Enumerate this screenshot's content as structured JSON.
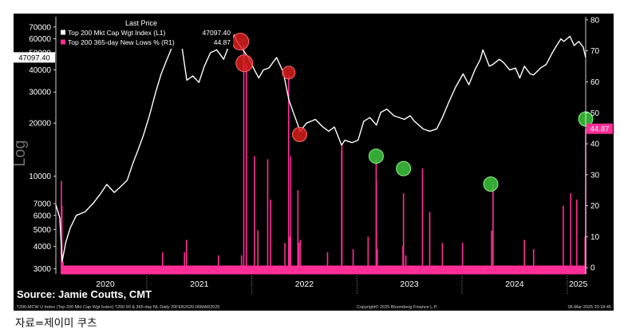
{
  "caption": "자료=제이미 쿠츠",
  "chart_data": {
    "type": "line",
    "legend": {
      "title": "Last Price",
      "placement": "top-left",
      "entries": [
        {
          "label": "Top 200 Mkt Cap Wgt Index  (L1)",
          "value": "47097.40",
          "color": "#ffffff"
        },
        {
          "label": "Top 200 365-day New Lows %  (R1)",
          "value": "44.87",
          "color": "#ff2d95"
        }
      ]
    },
    "left_axis": {
      "scale": "log",
      "label": "Log",
      "ticks": [
        3000,
        4000,
        5000,
        6000,
        7000,
        10000,
        20000,
        30000,
        40000,
        50000,
        60000,
        70000
      ],
      "tick_labels": [
        "3000",
        "4000",
        "5000",
        "6000",
        "7000",
        "10000",
        "20000",
        "30000",
        "40000",
        "50000",
        "60000",
        "70000"
      ],
      "last_value_label": "47097.40",
      "ylim": [
        2800,
        80000
      ]
    },
    "right_axis": {
      "scale": "linear",
      "ticks": [
        0,
        10,
        20,
        30,
        40,
        50,
        60,
        70,
        80
      ],
      "last_value_label": "44.87",
      "ylim": [
        -2,
        81
      ]
    },
    "x_axis": {
      "years": [
        "2020",
        "2021",
        "2022",
        "2023",
        "2024",
        "2025"
      ],
      "range": [
        "2020-02-20",
        "2025-03-06"
      ]
    },
    "series": [
      {
        "name": "Top 200 Mkt Cap Wgt Index",
        "axis": "left",
        "color": "#ffffff",
        "x": [
          "2020-02-20",
          "2020-03-05",
          "2020-03-13",
          "2020-03-25",
          "2020-04-10",
          "2020-05-01",
          "2020-06-01",
          "2020-07-01",
          "2020-07-25",
          "2020-08-15",
          "2020-09-10",
          "2020-10-01",
          "2020-10-25",
          "2020-11-15",
          "2020-12-01",
          "2020-12-20",
          "2021-01-10",
          "2021-02-01",
          "2021-02-20",
          "2021-03-10",
          "2021-04-01",
          "2021-04-15",
          "2021-05-01",
          "2021-05-20",
          "2021-06-10",
          "2021-07-01",
          "2021-07-20",
          "2021-08-10",
          "2021-09-01",
          "2021-09-25",
          "2021-10-15",
          "2021-11-01",
          "2021-11-10",
          "2021-12-01",
          "2021-12-20",
          "2022-01-10",
          "2022-01-25",
          "2022-02-10",
          "2022-03-01",
          "2022-03-28",
          "2022-04-20",
          "2022-05-10",
          "2022-05-25",
          "2022-06-18",
          "2022-07-10",
          "2022-08-10",
          "2022-09-05",
          "2022-09-25",
          "2022-10-15",
          "2022-11-09",
          "2022-11-20",
          "2022-12-15",
          "2023-01-05",
          "2023-01-25",
          "2023-02-15",
          "2023-03-10",
          "2023-03-25",
          "2023-04-15",
          "2023-05-10",
          "2023-06-15",
          "2023-07-05",
          "2023-07-20",
          "2023-08-20",
          "2023-09-11",
          "2023-10-05",
          "2023-10-25",
          "2023-11-15",
          "2023-12-10",
          "2024-01-05",
          "2024-01-25",
          "2024-02-15",
          "2024-03-05",
          "2024-03-14",
          "2024-04-05",
          "2024-04-18",
          "2024-05-10",
          "2024-05-25",
          "2024-06-15",
          "2024-07-05",
          "2024-07-20",
          "2024-08-05",
          "2024-08-25",
          "2024-09-06",
          "2024-09-30",
          "2024-10-20",
          "2024-11-10",
          "2024-11-25",
          "2024-12-10",
          "2024-12-20",
          "2025-01-10",
          "2025-01-25",
          "2025-02-10",
          "2025-02-25",
          "2025-03-06"
        ],
        "values": [
          6900,
          5800,
          3300,
          4200,
          5100,
          6000,
          6300,
          7100,
          8000,
          9000,
          8100,
          8700,
          9500,
          12000,
          14000,
          17000,
          22000,
          30000,
          38000,
          45000,
          55000,
          62000,
          57000,
          35000,
          37000,
          34000,
          42000,
          50000,
          52000,
          46000,
          56000,
          63000,
          58000,
          52000,
          47000,
          40000,
          36000,
          40000,
          41000,
          47000,
          39000,
          27000,
          23000,
          18000,
          20000,
          21000,
          19000,
          18000,
          19000,
          15000,
          16000,
          15500,
          16000,
          20500,
          21500,
          19500,
          23000,
          24000,
          22000,
          21000,
          22000,
          20500,
          18500,
          18000,
          18500,
          21500,
          26000,
          32000,
          38000,
          33000,
          40000,
          46000,
          52000,
          42000,
          43000,
          46000,
          44000,
          40000,
          41000,
          36000,
          42000,
          38000,
          37500,
          41000,
          43000,
          50000,
          55000,
          60000,
          58000,
          62000,
          55000,
          58000,
          54000,
          47097.4
        ]
      },
      {
        "name": "Top 200 365-day New Lows %",
        "axis": "right",
        "color": "#ff2d95",
        "x": [
          "2020-03-10",
          "2020-03-12",
          "2020-03-13",
          "2020-03-16",
          "2021-02-25",
          "2021-05-12",
          "2021-05-19",
          "2021-09-07",
          "2021-11-26",
          "2021-12-04",
          "2021-12-13",
          "2022-01-10",
          "2022-01-22",
          "2022-02-25",
          "2022-03-07",
          "2022-04-26",
          "2022-05-09",
          "2022-05-12",
          "2022-05-16",
          "2022-06-10",
          "2022-06-13",
          "2022-06-18",
          "2022-09-21",
          "2022-11-09",
          "2022-11-10",
          "2022-12-19",
          "2023-02-09",
          "2023-03-09",
          "2023-03-10",
          "2023-03-13",
          "2023-06-10",
          "2023-06-12",
          "2023-06-20",
          "2023-08-17",
          "2023-09-11",
          "2023-10-25",
          "2024-01-03",
          "2024-04-13",
          "2024-04-18",
          "2024-08-05",
          "2024-09-06",
          "2024-12-18",
          "2025-01-13",
          "2025-02-03",
          "2025-03-04",
          "2025-03-06"
        ],
        "values": [
          28,
          20,
          3,
          2,
          5,
          5,
          9,
          4,
          4,
          72,
          66,
          36,
          12,
          35,
          22,
          8,
          62,
          10,
          36,
          25,
          8,
          9,
          5,
          38,
          40,
          6,
          10,
          35,
          28,
          6,
          7,
          24,
          4,
          32,
          18,
          8,
          8,
          12,
          27,
          9,
          6,
          20,
          24,
          22,
          10,
          44.87
        ],
        "baseline_pct": 0.7
      }
    ],
    "markers": [
      {
        "date": "2021-11-22",
        "value": 73,
        "color": "red",
        "axis": "right"
      },
      {
        "date": "2021-12-06",
        "value": 66,
        "color": "red",
        "axis": "right"
      },
      {
        "date": "2022-05-09",
        "value": 63,
        "color": "red",
        "axis": "right"
      },
      {
        "date": "2022-06-16",
        "value": 43,
        "color": "red",
        "axis": "right"
      },
      {
        "date": "2023-03-09",
        "value": 36,
        "color": "green",
        "axis": "right"
      },
      {
        "date": "2023-06-12",
        "value": 32,
        "color": "green",
        "axis": "right"
      },
      {
        "date": "2024-04-10",
        "value": 27,
        "color": "green",
        "axis": "right"
      },
      {
        "date": "2025-03-06",
        "value": 48,
        "color": "green",
        "axis": "right"
      }
    ],
    "source": "Source: Jamie Coutts, CMT",
    "footer": {
      "left": ".T200-MCW U Index (Top 200 Mkt Cap Wgt Index) T200 90 & 365-day NL  Daily 20FEB2020-06MAR2025",
      "center": "Copyright© 2025 Bloomberg Finance L.P.",
      "right": "06-Mar-2025 20:18:45"
    }
  }
}
